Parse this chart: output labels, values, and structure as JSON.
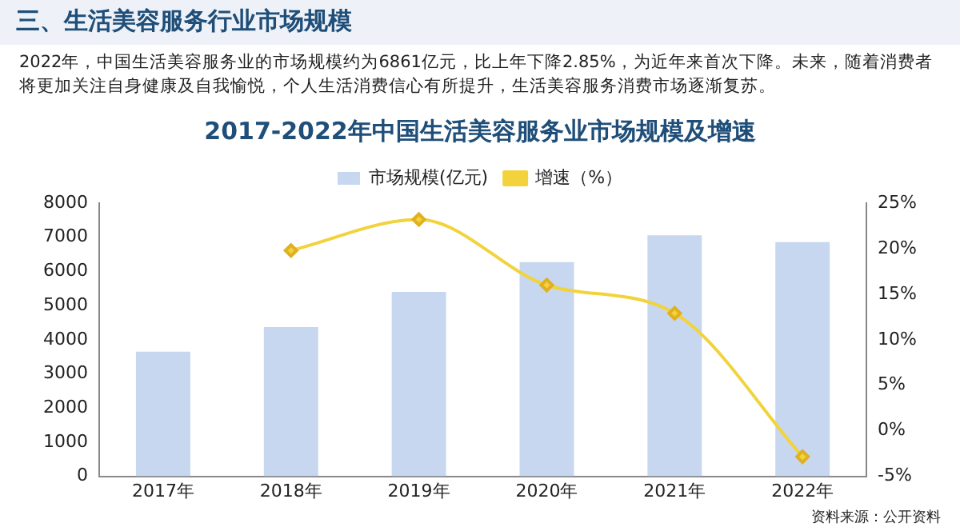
{
  "chart_data": {
    "type": "bar",
    "title": "2017-2022年中国生活美容服务业市场规模及增速",
    "annotations": [
      "三、生活美容服务行业市场规模",
      "2022年，中国生活美容服务业的市场规模约为6861亿元，比上年下降2.85%，为近年来首次下降。未来，随着消费者将更加关注自身健康及自我愉悦，个人生活消费信心有所提升，生活美容服务消费市场逐渐复苏。",
      "资料来源：公开资料"
    ],
    "categories": [
      "2017年",
      "2018年",
      "2019年",
      "2020年",
      "2021年",
      "2022年"
    ],
    "series": [
      {
        "name": "市场规模(亿元)",
        "color": "#c6d7ef",
        "values": [
          3650,
          4370,
          5400,
          6270,
          7060,
          6861
        ]
      },
      {
        "name": "增速（%）",
        "type": "line",
        "axis": "y2",
        "color": "#f2d33c",
        "values": [
          null,
          19.8,
          23.2,
          16.0,
          12.9,
          -2.85
        ]
      }
    ],
    "ylim": [
      0,
      8000
    ],
    "yticks": [
      0,
      1000,
      2000,
      3000,
      4000,
      5000,
      6000,
      7000,
      8000
    ],
    "y2lim": [
      -5,
      25
    ],
    "y2ticks": [
      {
        "value": -5,
        "label": "-5%"
      },
      {
        "value": 0,
        "label": "0%"
      },
      {
        "value": 5,
        "label": "5%"
      },
      {
        "value": 10,
        "label": "10%"
      },
      {
        "value": 15,
        "label": "15%"
      },
      {
        "value": 20,
        "label": "20%"
      },
      {
        "value": 25,
        "label": "25%"
      }
    ],
    "legend": "top",
    "grid": false,
    "marker": "diamond"
  }
}
